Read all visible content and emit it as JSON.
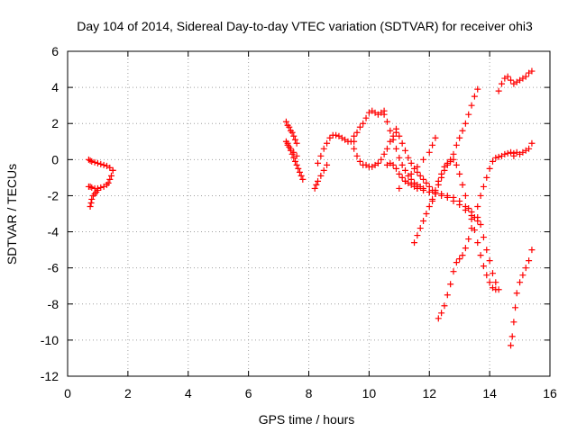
{
  "chart_data": {
    "type": "scatter",
    "title": "Day 104 of 2014, Sidereal Day-to-day VTEC variation (SDTVAR) for receiver ohi3",
    "xlabel": "GPS time / hours",
    "ylabel": "SDTVAR / TECUs",
    "xlim": [
      0,
      16
    ],
    "ylim": [
      -12,
      6
    ],
    "x_ticks": [
      "0",
      "2",
      "4",
      "6",
      "8",
      "10",
      "12",
      "14",
      "16"
    ],
    "y_ticks": [
      "-12",
      "-10",
      "-8",
      "-6",
      "-4",
      "-2",
      "0",
      "2",
      "4",
      "6"
    ],
    "grid": true,
    "marker": "plus",
    "color": "#ff0000",
    "series": [
      {
        "x": [
          0.7,
          0.75,
          0.8,
          0.9,
          1.0,
          1.1,
          1.2,
          1.3,
          1.4,
          1.5
        ],
        "y": [
          0.0,
          -0.05,
          -0.1,
          -0.15,
          -0.2,
          -0.25,
          -0.3,
          -0.35,
          -0.45,
          -0.6
        ]
      },
      {
        "x": [
          1.5,
          1.45,
          1.4,
          1.35,
          1.3,
          1.2,
          1.1,
          1.0,
          0.9,
          0.8,
          0.75,
          0.7
        ],
        "y": [
          -0.6,
          -0.9,
          -1.1,
          -1.3,
          -1.4,
          -1.5,
          -1.55,
          -1.6,
          -1.6,
          -1.55,
          -1.5,
          -1.5
        ]
      },
      {
        "x": [
          0.75,
          0.78,
          0.8,
          0.85,
          0.9,
          0.95,
          1.0
        ],
        "y": [
          -2.6,
          -2.4,
          -2.2,
          -2.0,
          -1.9,
          -1.8,
          -1.7
        ]
      },
      {
        "x": [
          7.25,
          7.3,
          7.35,
          7.4,
          7.45,
          7.5,
          7.55,
          7.6
        ],
        "y": [
          2.1,
          1.9,
          1.8,
          1.6,
          1.5,
          1.3,
          1.1,
          0.9
        ]
      },
      {
        "x": [
          7.3,
          7.35,
          7.4,
          7.45,
          7.5,
          7.55,
          7.6,
          7.65,
          7.7,
          7.75,
          7.8
        ],
        "y": [
          0.9,
          0.7,
          0.5,
          0.3,
          0.1,
          -0.1,
          -0.3,
          -0.5,
          -0.7,
          -0.9,
          -1.1
        ]
      },
      {
        "x": [
          7.25,
          7.3,
          7.4,
          7.5,
          7.6
        ],
        "y": [
          1.0,
          0.8,
          0.6,
          0.4,
          0.2
        ]
      },
      {
        "x": [
          8.2,
          8.25,
          8.3,
          8.4,
          8.5,
          8.6
        ],
        "y": [
          -1.6,
          -1.4,
          -1.2,
          -0.9,
          -0.6,
          -0.3
        ]
      },
      {
        "x": [
          8.3,
          8.4,
          8.5,
          8.6,
          8.7,
          8.8,
          8.9,
          9.0,
          9.1,
          9.2,
          9.3,
          9.4,
          9.5
        ],
        "y": [
          -0.2,
          0.2,
          0.6,
          0.9,
          1.2,
          1.35,
          1.35,
          1.3,
          1.2,
          1.1,
          1.0,
          1.0,
          1.0
        ]
      },
      {
        "x": [
          9.5,
          9.6,
          9.7,
          9.8,
          9.9,
          10.0,
          10.1,
          10.2,
          10.3,
          10.4,
          10.5,
          10.6,
          10.7,
          10.8,
          10.9
        ],
        "y": [
          0.6,
          0.2,
          -0.1,
          -0.3,
          -0.3,
          -0.4,
          -0.4,
          -0.3,
          -0.2,
          0.0,
          0.3,
          0.6,
          1.0,
          1.3,
          1.5
        ]
      },
      {
        "x": [
          9.5,
          9.6,
          9.7,
          9.8,
          9.9,
          10.0,
          10.1,
          10.2,
          10.3,
          10.4,
          10.5
        ],
        "y": [
          1.3,
          1.5,
          1.8,
          2.0,
          2.3,
          2.6,
          2.7,
          2.6,
          2.5,
          2.6,
          2.7
        ]
      },
      {
        "x": [
          10.5,
          10.6,
          10.7,
          10.8,
          10.9,
          11.0,
          11.1,
          11.2,
          11.3,
          11.4,
          11.5,
          11.6,
          11.7,
          11.8
        ],
        "y": [
          2.5,
          2.1,
          1.6,
          1.1,
          0.6,
          0.1,
          -0.3,
          -0.6,
          -0.9,
          -1.1,
          -1.3,
          -1.4,
          -1.5,
          -1.6
        ]
      },
      {
        "x": [
          10.6,
          10.7,
          10.8,
          10.9,
          11.0,
          11.1,
          11.2,
          11.3,
          11.4,
          11.5,
          11.6,
          11.8,
          12.0,
          12.2,
          12.4,
          12.6,
          12.8,
          13.0,
          13.2,
          13.4,
          13.6
        ],
        "y": [
          -0.3,
          -0.2,
          -0.3,
          -0.5,
          -0.8,
          -1.0,
          -1.2,
          -1.3,
          -1.4,
          -1.5,
          -1.6,
          -1.7,
          -1.8,
          -1.9,
          -2.0,
          -2.1,
          -2.3,
          -2.5,
          -2.8,
          -3.1,
          -3.4
        ]
      },
      {
        "x": [
          10.9,
          11.0,
          11.1,
          11.2,
          11.3,
          11.4,
          11.5,
          11.6,
          11.7,
          11.8,
          11.9,
          12.0,
          12.1,
          12.2
        ],
        "y": [
          1.7,
          1.3,
          0.9,
          0.5,
          0.1,
          -0.2,
          -0.5,
          -0.7,
          -0.9,
          -1.1,
          -1.3,
          -1.5,
          -1.7,
          -1.9
        ]
      },
      {
        "x": [
          11.0,
          11.2,
          11.4,
          11.6,
          11.8,
          12.0,
          12.1,
          12.2
        ],
        "y": [
          -1.6,
          -1.2,
          -0.8,
          -0.4,
          0.0,
          0.4,
          0.8,
          1.2
        ]
      },
      {
        "x": [
          11.5,
          11.6,
          11.7,
          11.8,
          11.9,
          12.0,
          12.1,
          12.2,
          12.3,
          12.4,
          12.5,
          12.6,
          12.7,
          12.8,
          12.9,
          13.0,
          13.1,
          13.2,
          13.3,
          13.4,
          13.5,
          13.6
        ],
        "y": [
          -4.6,
          -4.2,
          -3.8,
          -3.4,
          -3.0,
          -2.6,
          -2.2,
          -1.8,
          -1.4,
          -1.0,
          -0.6,
          -0.3,
          0.0,
          0.3,
          0.8,
          1.2,
          1.6,
          2.0,
          2.5,
          3.0,
          3.5,
          3.9
        ]
      },
      {
        "x": [
          11.6,
          11.8,
          12.0,
          12.2,
          12.4,
          12.6,
          12.8,
          13.0,
          13.2,
          13.4,
          13.6,
          13.7,
          13.8,
          13.9,
          14.0,
          14.1,
          14.2,
          14.3
        ],
        "y": [
          -1.6,
          -1.7,
          -1.8,
          -1.9,
          -1.9,
          -2.0,
          -2.1,
          -2.3,
          -2.6,
          -2.9,
          -3.2,
          -3.6,
          -4.3,
          -5.0,
          -5.6,
          -6.3,
          -6.8,
          -7.2
        ]
      },
      {
        "x": [
          12.1,
          12.2,
          12.3,
          12.4,
          12.5,
          12.6,
          12.7,
          12.8,
          12.9,
          13.0,
          13.1,
          13.2,
          13.3,
          13.4,
          13.5,
          13.6,
          13.7,
          13.8,
          13.9,
          14.0,
          14.1,
          14.2
        ],
        "y": [
          -2.3,
          -1.7,
          -1.2,
          -0.8,
          -0.4,
          -0.2,
          -0.1,
          0.0,
          -0.3,
          -0.8,
          -1.4,
          -2.0,
          -2.7,
          -3.3,
          -3.9,
          -4.6,
          -5.3,
          -5.9,
          -6.4,
          -6.8,
          -7.1,
          -7.2
        ]
      },
      {
        "x": [
          12.3,
          12.4,
          12.5,
          12.6,
          12.7,
          12.8,
          12.9,
          13.0,
          13.1,
          13.2,
          13.3,
          13.4,
          13.5,
          13.6,
          13.7,
          13.8,
          13.9,
          14.0,
          14.1,
          14.2,
          14.3,
          14.4,
          14.5,
          14.6,
          14.7,
          14.8
        ],
        "y": [
          -8.8,
          -8.5,
          -8.1,
          -7.5,
          -6.9,
          -6.2,
          -5.7,
          -5.5,
          -5.3,
          -4.9,
          -4.4,
          -3.8,
          -3.2,
          -2.6,
          -2.0,
          -1.5,
          -1.0,
          -0.5,
          -0.1,
          0.1,
          0.15,
          0.2,
          0.3,
          0.35,
          0.4,
          0.35
        ]
      },
      {
        "x": [
          14.8,
          14.9,
          15.0,
          15.1,
          15.2,
          15.3,
          15.4
        ],
        "y": [
          0.2,
          0.4,
          0.3,
          0.4,
          0.5,
          0.6,
          0.9
        ]
      },
      {
        "x": [
          14.3,
          14.4,
          14.5,
          14.6,
          14.7,
          14.8,
          14.9,
          15.0,
          15.1,
          15.2,
          15.3,
          15.4
        ],
        "y": [
          3.8,
          4.2,
          4.5,
          4.6,
          4.4,
          4.2,
          4.3,
          4.4,
          4.5,
          4.6,
          4.8,
          4.9
        ]
      },
      {
        "x": [
          14.7,
          14.75,
          14.8,
          14.85,
          14.9,
          15.0,
          15.1,
          15.2,
          15.3,
          15.4
        ],
        "y": [
          -10.3,
          -9.8,
          -9.0,
          -8.2,
          -7.4,
          -6.8,
          -6.4,
          -6.0,
          -5.6,
          -5.0
        ]
      }
    ]
  }
}
